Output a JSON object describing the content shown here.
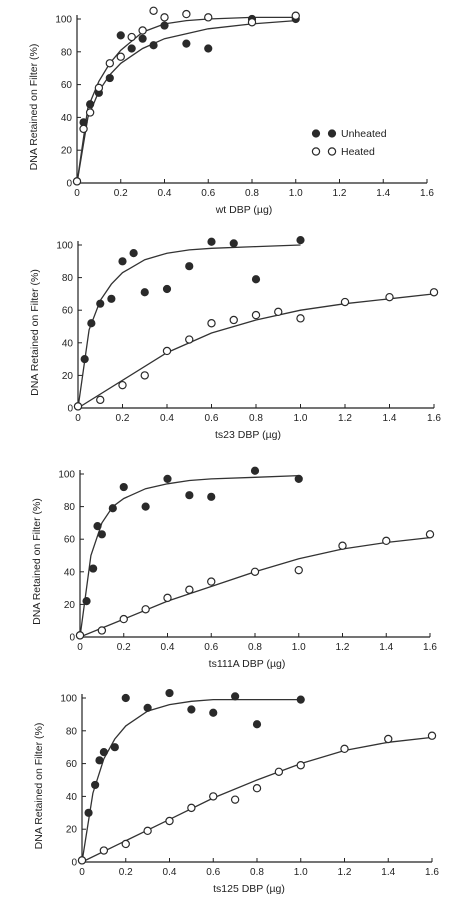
{
  "chart_data": [
    {
      "type": "scatter",
      "xlabel": "wt DBP (µg)",
      "ylabel": "DNA Retained on Filter (%)",
      "xlim": [
        0,
        1.6
      ],
      "ylim": [
        0,
        100
      ],
      "xticks": [
        "0",
        "0.2",
        "0.4",
        "0.6",
        "0.8",
        "1.0",
        "1.2",
        "1.4",
        "1.6"
      ],
      "yticks": [
        "0",
        "20",
        "40",
        "60",
        "80",
        "100"
      ],
      "legend": {
        "placement": "right",
        "entries": [
          "Unheated",
          "Heated"
        ]
      },
      "series": [
        {
          "name": "Unheated",
          "marker": "filled-circle",
          "x": [
            0,
            0.03,
            0.06,
            0.1,
            0.15,
            0.2,
            0.25,
            0.3,
            0.35,
            0.4,
            0.5,
            0.6,
            0.8,
            1.0
          ],
          "y": [
            1,
            37,
            48,
            55,
            64,
            90,
            82,
            88,
            84,
            96,
            85,
            82,
            100,
            100
          ]
        },
        {
          "name": "Heated",
          "marker": "open-circle",
          "x": [
            0,
            0.03,
            0.06,
            0.1,
            0.15,
            0.2,
            0.25,
            0.3,
            0.35,
            0.4,
            0.5,
            0.6,
            0.8,
            1.0
          ],
          "y": [
            1,
            33,
            43,
            58,
            73,
            77,
            89,
            93,
            105,
            101,
            103,
            101,
            98,
            102
          ]
        }
      ],
      "fits": [
        {
          "series": "Unheated",
          "x": [
            0,
            0.05,
            0.1,
            0.15,
            0.2,
            0.3,
            0.4,
            0.5,
            0.6,
            0.8,
            1.0
          ],
          "y": [
            0,
            40,
            56,
            66,
            73,
            82,
            88,
            91,
            94,
            97,
            99
          ]
        },
        {
          "series": "Heated",
          "x": [
            0,
            0.05,
            0.1,
            0.15,
            0.2,
            0.3,
            0.4,
            0.5,
            0.6,
            0.8,
            1.0
          ],
          "y": [
            0,
            46,
            62,
            73,
            81,
            92,
            97,
            99,
            100,
            101,
            101
          ]
        }
      ]
    },
    {
      "type": "scatter",
      "xlabel": "ts23 DBP (µg)",
      "ylabel": "DNA Retained on Filter (%)",
      "xlim": [
        0,
        1.6
      ],
      "ylim": [
        0,
        100
      ],
      "xticks": [
        "0",
        "0.2",
        "0.4",
        "0.6",
        "0.8",
        "1.0",
        "1.2",
        "1.4",
        "1.6"
      ],
      "yticks": [
        "0",
        "20",
        "40",
        "60",
        "80",
        "100"
      ],
      "series": [
        {
          "name": "Unheated",
          "marker": "filled-circle",
          "x": [
            0,
            0.03,
            0.06,
            0.1,
            0.15,
            0.2,
            0.25,
            0.3,
            0.4,
            0.5,
            0.6,
            0.7,
            0.8,
            1.0
          ],
          "y": [
            1,
            30,
            52,
            64,
            67,
            90,
            95,
            71,
            73,
            87,
            102,
            101,
            79,
            103
          ]
        },
        {
          "name": "Heated",
          "marker": "open-circle",
          "x": [
            0,
            0.1,
            0.2,
            0.3,
            0.4,
            0.5,
            0.6,
            0.7,
            0.8,
            0.9,
            1.0,
            1.2,
            1.4,
            1.6
          ],
          "y": [
            1,
            5,
            14,
            20,
            35,
            42,
            52,
            54,
            57,
            59,
            55,
            65,
            68,
            71
          ]
        }
      ],
      "fits": [
        {
          "series": "Unheated",
          "x": [
            0,
            0.05,
            0.1,
            0.15,
            0.2,
            0.3,
            0.4,
            0.5,
            0.6,
            0.8,
            1.0
          ],
          "y": [
            0,
            48,
            66,
            76,
            83,
            91,
            95,
            97,
            98,
            99,
            100
          ]
        },
        {
          "series": "Heated",
          "x": [
            0,
            0.2,
            0.4,
            0.6,
            0.8,
            1.0,
            1.2,
            1.4,
            1.6
          ],
          "y": [
            0,
            17,
            34,
            46,
            54,
            60,
            64,
            67,
            70
          ]
        }
      ]
    },
    {
      "type": "scatter",
      "xlabel": "ts111A DBP (µg)",
      "ylabel": "DNA Retained on Filter (%)",
      "xlim": [
        0,
        1.6
      ],
      "ylim": [
        0,
        100
      ],
      "xticks": [
        "0",
        "0.2",
        "0.4",
        "0.6",
        "0.8",
        "1.0",
        "1.2",
        "1.4",
        "1.6"
      ],
      "yticks": [
        "0",
        "20",
        "40",
        "60",
        "80",
        "100"
      ],
      "series": [
        {
          "name": "Unheated",
          "marker": "filled-circle",
          "x": [
            0,
            0.03,
            0.06,
            0.08,
            0.1,
            0.15,
            0.2,
            0.3,
            0.4,
            0.5,
            0.6,
            0.8,
            1.0
          ],
          "y": [
            1,
            22,
            42,
            68,
            63,
            79,
            92,
            80,
            97,
            87,
            86,
            102,
            97
          ]
        },
        {
          "name": "Heated",
          "marker": "open-circle",
          "x": [
            0,
            0.1,
            0.2,
            0.3,
            0.4,
            0.5,
            0.6,
            0.8,
            1.0,
            1.2,
            1.4,
            1.6
          ],
          "y": [
            1,
            4,
            11,
            17,
            24,
            29,
            34,
            40,
            41,
            56,
            59,
            63
          ]
        }
      ],
      "fits": [
        {
          "series": "Unheated",
          "x": [
            0,
            0.05,
            0.1,
            0.15,
            0.2,
            0.3,
            0.4,
            0.5,
            0.6,
            0.8,
            1.0
          ],
          "y": [
            0,
            50,
            70,
            80,
            85,
            91,
            94,
            96,
            97,
            98,
            99
          ]
        },
        {
          "series": "Heated",
          "x": [
            0,
            0.2,
            0.4,
            0.6,
            0.8,
            1.0,
            1.2,
            1.4,
            1.6
          ],
          "y": [
            0,
            11,
            22,
            31,
            40,
            48,
            54,
            58,
            61
          ]
        }
      ]
    },
    {
      "type": "scatter",
      "xlabel": "ts125 DBP (µg)",
      "ylabel": "DNA Retained on Filter (%)",
      "xlim": [
        0,
        1.6
      ],
      "ylim": [
        0,
        100
      ],
      "xticks": [
        "0",
        "0.2",
        "0.4",
        "0.6",
        "0.8",
        "1.0",
        "1.2",
        "1.4",
        "1.6"
      ],
      "yticks": [
        "0",
        "20",
        "40",
        "60",
        "80",
        "100"
      ],
      "series": [
        {
          "name": "Unheated",
          "marker": "filled-circle",
          "x": [
            0,
            0.03,
            0.06,
            0.08,
            0.1,
            0.15,
            0.2,
            0.3,
            0.4,
            0.5,
            0.6,
            0.7,
            0.8,
            1.0
          ],
          "y": [
            1,
            30,
            47,
            62,
            67,
            70,
            100,
            94,
            103,
            93,
            91,
            101,
            84,
            99
          ]
        },
        {
          "name": "Heated",
          "marker": "open-circle",
          "x": [
            0,
            0.1,
            0.2,
            0.3,
            0.4,
            0.5,
            0.6,
            0.7,
            0.8,
            0.9,
            1.0,
            1.2,
            1.4,
            1.6
          ],
          "y": [
            1,
            7,
            11,
            19,
            25,
            33,
            40,
            38,
            45,
            55,
            59,
            69,
            75,
            77
          ]
        }
      ],
      "fits": [
        {
          "series": "Unheated",
          "x": [
            0,
            0.05,
            0.1,
            0.15,
            0.2,
            0.3,
            0.4,
            0.5,
            0.6,
            0.8,
            1.0
          ],
          "y": [
            0,
            42,
            63,
            75,
            83,
            92,
            96,
            98,
            99,
            99,
            99
          ]
        },
        {
          "series": "Heated",
          "x": [
            0,
            0.2,
            0.4,
            0.6,
            0.8,
            1.0,
            1.2,
            1.4,
            1.6
          ],
          "y": [
            0,
            13,
            26,
            39,
            50,
            60,
            68,
            73,
            76
          ]
        }
      ]
    }
  ]
}
